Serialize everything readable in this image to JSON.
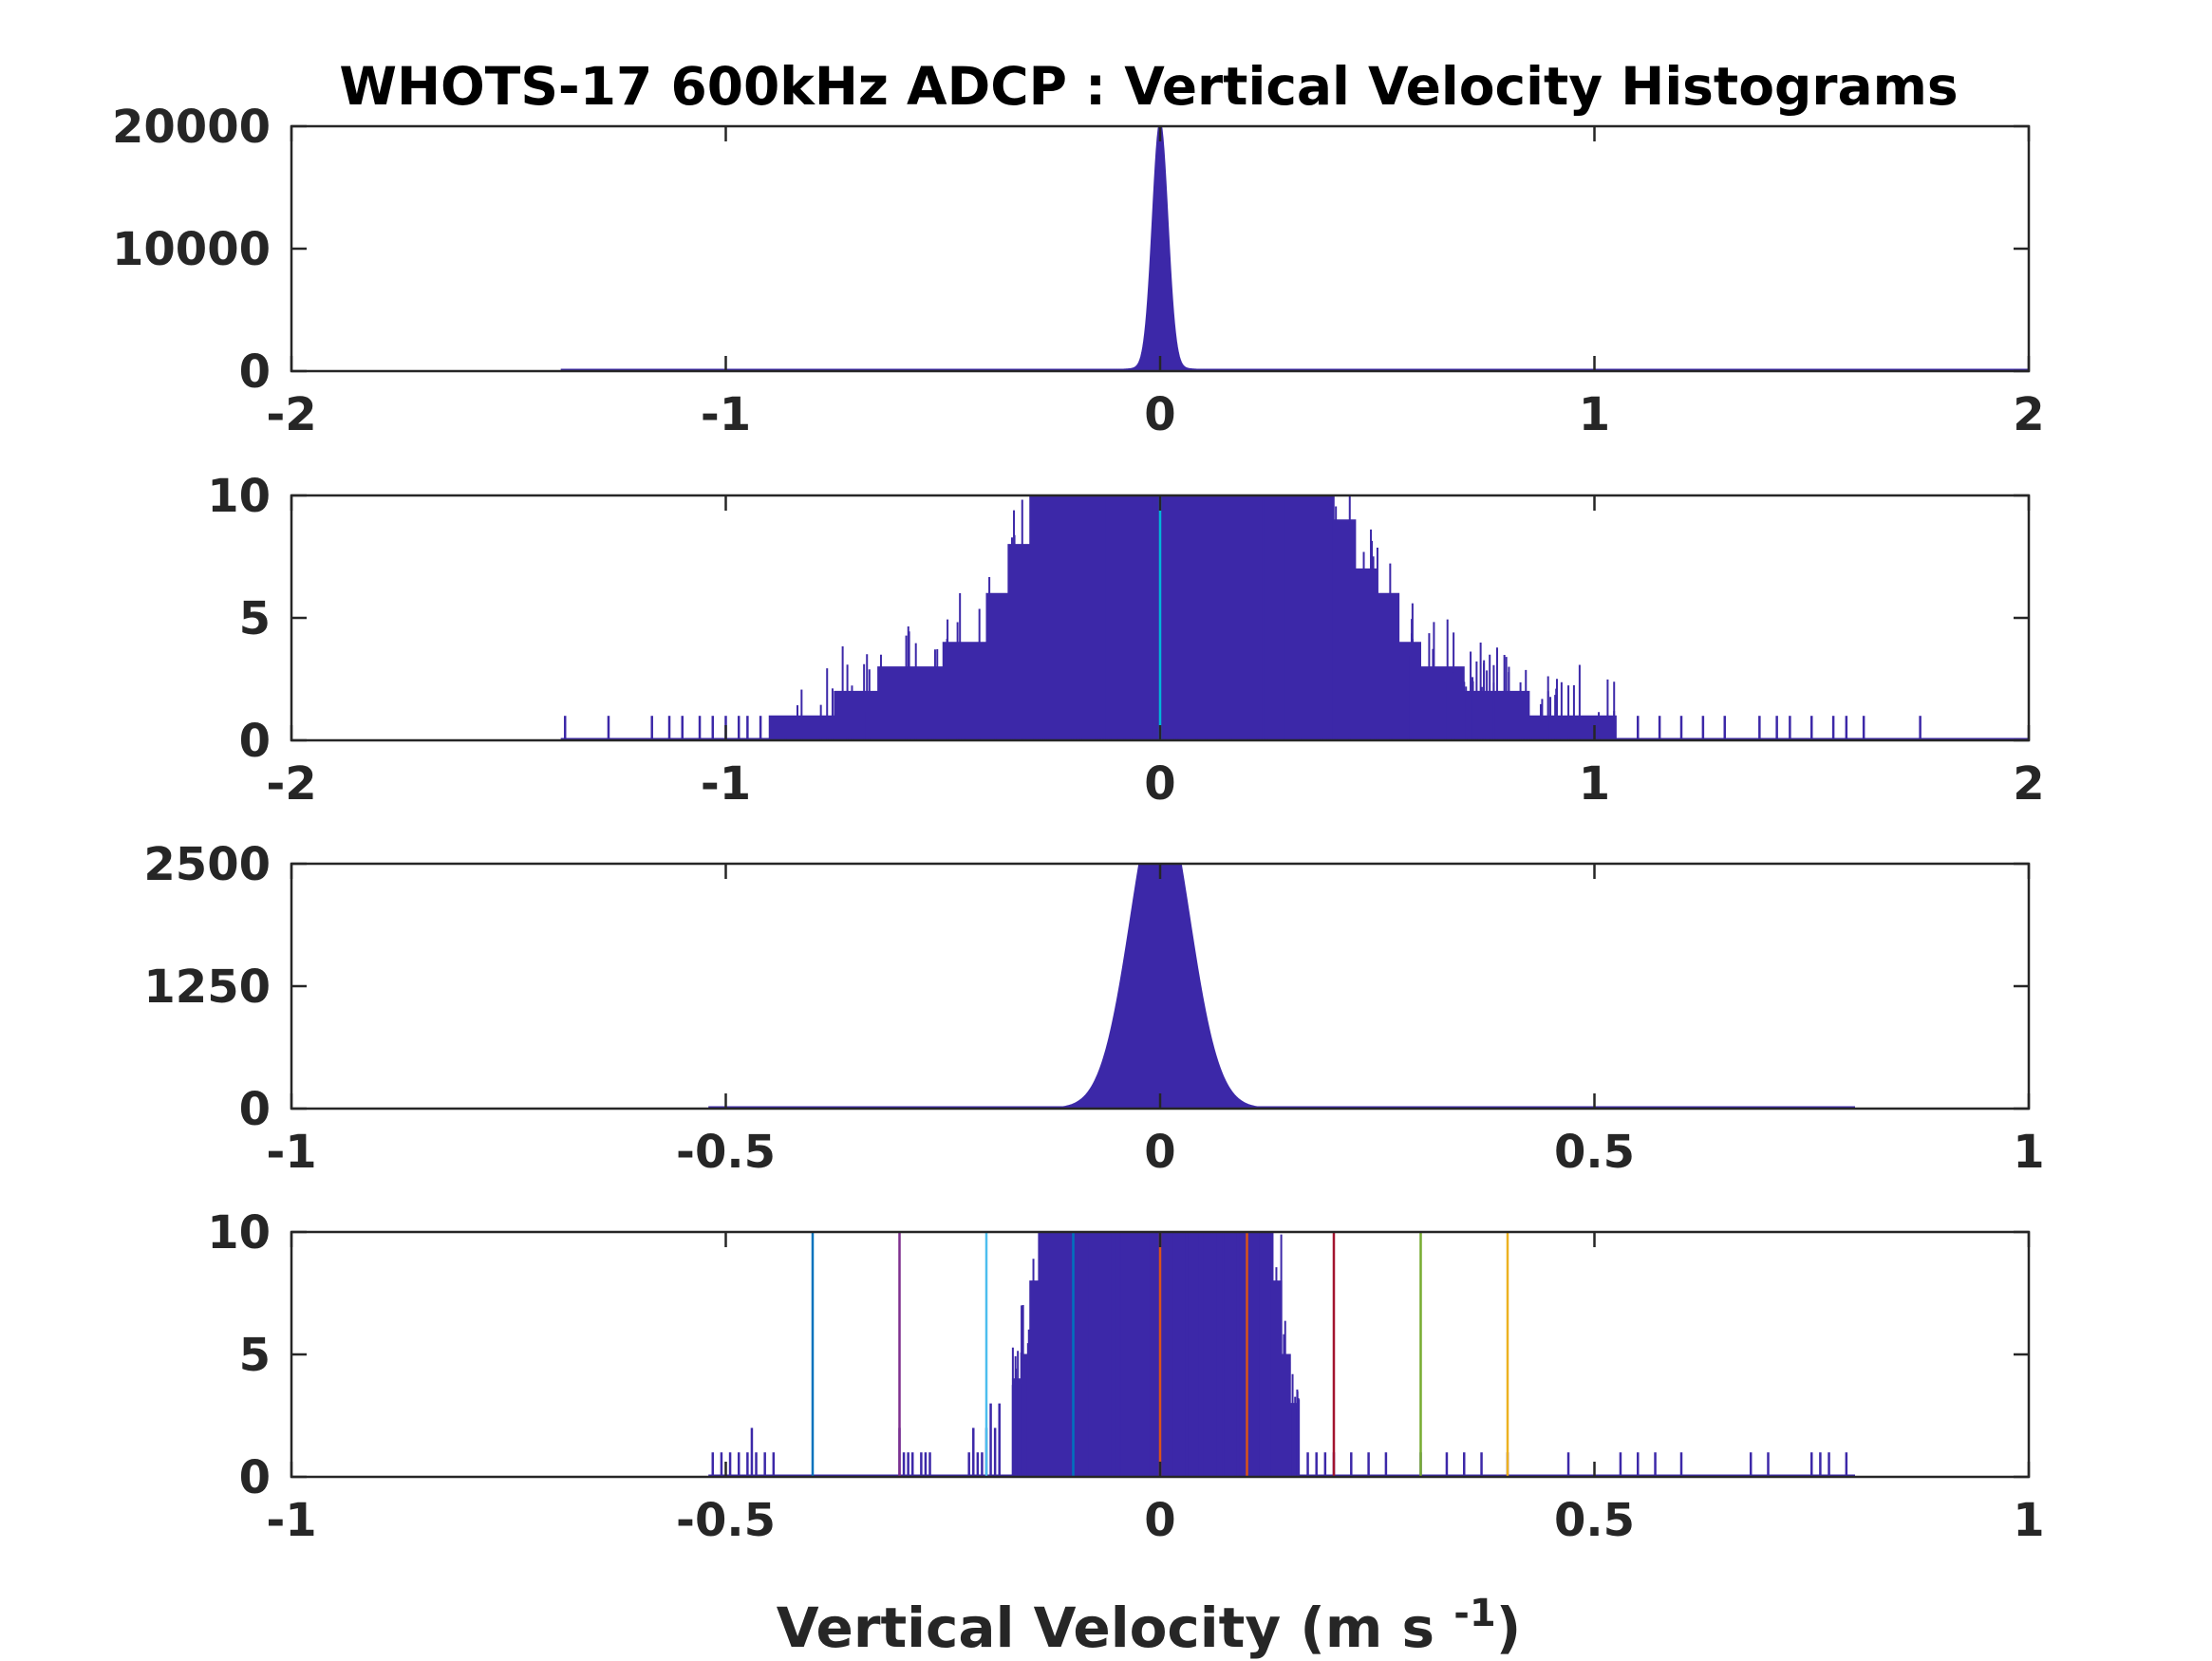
{
  "chart_data": {
    "title": "WHOTS-17 600kHz ADCP : Vertical Velocity Histograms",
    "xlabel": {
      "main": "Vertical Velocity (m s ",
      "exponent": "-1",
      "close": ")"
    },
    "bar_color": "#3c28a8",
    "panels": [
      {
        "type": "bar",
        "description_key": "full-range",
        "xlim": [
          -2,
          2
        ],
        "ylim": [
          0,
          20000
        ],
        "xticks": [
          -2,
          -1,
          0,
          1,
          2
        ],
        "xtick_labels": [
          "-2",
          "-1",
          "0",
          "1",
          "2"
        ],
        "yticks": [
          0,
          10000,
          20000
        ],
        "ytick_labels": [
          "0",
          "10000",
          "20000"
        ],
        "support": [
          -1.38,
          2.0
        ],
        "distribution": {
          "center": 0.0,
          "sigma": 0.018,
          "peak": 20000,
          "tail_scale": 0.09,
          "tail_amp": 0.02
        },
        "sparse": [],
        "vlines": []
      },
      {
        "type": "bar",
        "description_key": "full-range-zoom",
        "xlim": [
          -2,
          2
        ],
        "ylim": [
          0,
          10
        ],
        "xticks": [
          -2,
          -1,
          0,
          1,
          2
        ],
        "xtick_labels": [
          "-2",
          "-1",
          "0",
          "1",
          "2"
        ],
        "yticks": [
          0,
          5,
          10
        ],
        "ytick_labels": [
          "0",
          "5",
          "10"
        ],
        "support": [
          -1.38,
          2.0
        ],
        "dense_counts": [
          [
            -0.9,
            1
          ],
          [
            -0.8,
            1
          ],
          [
            -0.75,
            2
          ],
          [
            -0.7,
            2
          ],
          [
            -0.65,
            3
          ],
          [
            -0.6,
            3
          ],
          [
            -0.55,
            3
          ],
          [
            -0.5,
            4
          ],
          [
            -0.45,
            4
          ],
          [
            -0.4,
            6
          ],
          [
            -0.35,
            8
          ],
          [
            -0.3,
            12
          ],
          [
            0.35,
            12
          ],
          [
            0.4,
            9
          ],
          [
            0.45,
            7
          ],
          [
            0.5,
            6
          ],
          [
            0.55,
            4
          ],
          [
            0.6,
            3
          ],
          [
            0.65,
            3
          ],
          [
            0.7,
            2
          ],
          [
            0.75,
            2
          ],
          [
            0.85,
            1
          ],
          [
            0.95,
            1
          ],
          [
            1.05,
            1
          ]
        ],
        "sparse": [
          [
            -1.37,
            1
          ],
          [
            -1.27,
            1
          ],
          [
            -1.17,
            1
          ],
          [
            -1.13,
            1
          ],
          [
            -1.1,
            1
          ],
          [
            -1.06,
            1
          ],
          [
            -1.03,
            1
          ],
          [
            -1.0,
            1
          ],
          [
            -0.97,
            1
          ],
          [
            -0.95,
            1
          ],
          [
            -0.92,
            1
          ],
          [
            1.1,
            1
          ],
          [
            1.15,
            1
          ],
          [
            1.2,
            1
          ],
          [
            1.25,
            1
          ],
          [
            1.3,
            1
          ],
          [
            1.38,
            1
          ],
          [
            1.42,
            1
          ],
          [
            1.45,
            1
          ],
          [
            1.5,
            1
          ],
          [
            1.55,
            1
          ],
          [
            1.58,
            1
          ],
          [
            1.62,
            1
          ],
          [
            1.75,
            1
          ]
        ],
        "vlines": [
          {
            "x": 0.0,
            "color": "#00b4d8"
          }
        ]
      },
      {
        "type": "bar",
        "description_key": "core",
        "xlim": [
          -1,
          1
        ],
        "ylim": [
          0,
          2500
        ],
        "xticks": [
          -1,
          -0.5,
          0,
          0.5,
          1
        ],
        "xtick_labels": [
          "-1",
          "-0.5",
          "0",
          "0.5",
          "1"
        ],
        "yticks": [
          0,
          1250,
          2500
        ],
        "ytick_labels": [
          "0",
          "1250",
          "2500"
        ],
        "support": [
          -0.52,
          0.8
        ],
        "distribution": {
          "center": 0.0,
          "sigma": 0.034,
          "peak": 3200,
          "tail_scale": 0.06,
          "tail_amp": 0.01
        },
        "sparse": [],
        "vlines": []
      },
      {
        "type": "bar",
        "description_key": "core-zoom",
        "xlim": [
          -1,
          1
        ],
        "ylim": [
          0,
          10
        ],
        "xticks": [
          -1,
          -0.5,
          0,
          0.5,
          1
        ],
        "xtick_labels": [
          "-1",
          "-0.5",
          "0",
          "0.5",
          "1"
        ],
        "yticks": [
          0,
          5,
          10
        ],
        "ytick_labels": [
          "0",
          "5",
          "10"
        ],
        "support": [
          -0.52,
          0.8
        ],
        "dense_counts": [
          [
            -0.17,
            4
          ],
          [
            -0.16,
            5
          ],
          [
            -0.15,
            8
          ],
          [
            -0.14,
            12
          ],
          [
            0.12,
            12
          ],
          [
            0.13,
            8
          ],
          [
            0.14,
            5
          ],
          [
            0.15,
            3
          ],
          [
            0.16,
            2
          ]
        ],
        "sparse": [
          [
            -0.515,
            1
          ],
          [
            -0.505,
            1
          ],
          [
            -0.495,
            1
          ],
          [
            -0.485,
            1
          ],
          [
            -0.475,
            1
          ],
          [
            -0.465,
            1
          ],
          [
            -0.455,
            1
          ],
          [
            -0.445,
            1
          ],
          [
            -0.47,
            2
          ],
          [
            -0.3,
            2
          ],
          [
            -0.295,
            1
          ],
          [
            -0.29,
            1
          ],
          [
            -0.285,
            1
          ],
          [
            -0.275,
            1
          ],
          [
            -0.27,
            1
          ],
          [
            -0.265,
            1
          ],
          [
            -0.22,
            1
          ],
          [
            -0.215,
            2
          ],
          [
            -0.21,
            1
          ],
          [
            -0.205,
            1
          ],
          [
            -0.2,
            2
          ],
          [
            -0.195,
            3
          ],
          [
            -0.19,
            2
          ],
          [
            -0.185,
            3
          ],
          [
            0.17,
            1
          ],
          [
            0.18,
            1
          ],
          [
            0.19,
            1
          ],
          [
            0.2,
            1
          ],
          [
            0.22,
            1
          ],
          [
            0.24,
            1
          ],
          [
            0.26,
            1
          ],
          [
            0.3,
            1
          ],
          [
            0.33,
            1
          ],
          [
            0.35,
            1
          ],
          [
            0.37,
            1
          ],
          [
            0.4,
            1
          ],
          [
            0.47,
            1
          ],
          [
            0.53,
            1
          ],
          [
            0.55,
            1
          ],
          [
            0.57,
            1
          ],
          [
            0.6,
            1
          ],
          [
            0.68,
            1
          ],
          [
            0.7,
            1
          ],
          [
            0.75,
            1
          ],
          [
            0.76,
            1
          ],
          [
            0.77,
            1
          ],
          [
            0.79,
            1
          ]
        ],
        "vlines": [
          {
            "x": -0.4,
            "color": "#0072bd"
          },
          {
            "x": -0.3,
            "color": "#7e2f8e"
          },
          {
            "x": -0.2,
            "color": "#4dbeee"
          },
          {
            "x": -0.1,
            "color": "#0072bd"
          },
          {
            "x": 0.0,
            "color": "#d95319"
          },
          {
            "x": 0.1,
            "color": "#d95319"
          },
          {
            "x": 0.2,
            "color": "#a2142f"
          },
          {
            "x": 0.3,
            "color": "#77ac30"
          },
          {
            "x": 0.4,
            "color": "#edb120"
          }
        ]
      }
    ]
  }
}
